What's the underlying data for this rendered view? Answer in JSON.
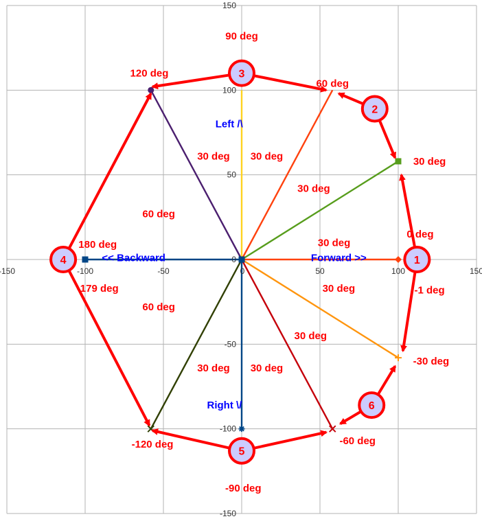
{
  "chart_data": {
    "type": "scatter",
    "title": "",
    "xlabel": "",
    "ylabel": "",
    "xlim": [
      -150,
      150
    ],
    "ylim": [
      -150,
      150
    ],
    "grid": true,
    "x_ticks": [
      {
        "value": -150,
        "label": "-150"
      },
      {
        "value": -100,
        "label": "-100"
      },
      {
        "value": -50,
        "label": "-50"
      },
      {
        "value": 0,
        "label": "0"
      },
      {
        "value": 50,
        "label": "50"
      },
      {
        "value": 100,
        "label": "100"
      },
      {
        "value": 150,
        "label": "150"
      }
    ],
    "y_ticks": [
      {
        "value": 150,
        "label": "150"
      },
      {
        "value": 100,
        "label": "100"
      },
      {
        "value": 50,
        "label": "50"
      },
      {
        "value": 0,
        "label": "0"
      },
      {
        "value": -50,
        "label": "-50"
      },
      {
        "value": -100,
        "label": "-100"
      },
      {
        "value": -150,
        "label": "-150"
      }
    ],
    "series": [
      {
        "angle": 0,
        "x": 100,
        "y": 0,
        "color": "#ff420e",
        "marker": "diamond"
      },
      {
        "angle": 30,
        "x": 100,
        "y": 58,
        "color": "#579d1c",
        "marker": "square"
      },
      {
        "angle": 60,
        "x": 58,
        "y": 100,
        "color": "#ff420e",
        "marker": "none"
      },
      {
        "angle": 90,
        "x": 0,
        "y": 100,
        "color": "#ffd320",
        "marker": "none"
      },
      {
        "angle": 120,
        "x": -58,
        "y": 100,
        "color": "#4b1f6f",
        "marker": "circle"
      },
      {
        "angle": 180,
        "x": -100,
        "y": 0,
        "color": "#004586",
        "marker": "square"
      },
      {
        "angle": -120,
        "x": -58,
        "y": -100,
        "color": "#314004",
        "marker": "x"
      },
      {
        "angle": -90,
        "x": 0,
        "y": -100,
        "color": "#004586",
        "marker": "star"
      },
      {
        "angle": -60,
        "x": 58,
        "y": -100,
        "color": "#c5000b",
        "marker": "x"
      },
      {
        "angle": -30,
        "x": 100,
        "y": -58,
        "color": "#ff950e",
        "marker": "plus"
      }
    ],
    "annotations": [
      {
        "text": "90 deg",
        "x": 0,
        "y": 132,
        "class": "ang"
      },
      {
        "text": "120 deg",
        "x": -59,
        "y": 110,
        "class": "ang"
      },
      {
        "text": "60 deg",
        "x": 58,
        "y": 104,
        "class": "ang"
      },
      {
        "text": "Left /\\",
        "x": -8,
        "y": 80,
        "class": "dir"
      },
      {
        "text": "30 deg",
        "x": -18,
        "y": 61,
        "class": "ang"
      },
      {
        "text": "30 deg",
        "x": 16,
        "y": 61,
        "class": "ang"
      },
      {
        "text": "30 deg",
        "x": 120,
        "y": 58,
        "class": "ang"
      },
      {
        "text": "30 deg",
        "x": 46,
        "y": 42,
        "class": "ang"
      },
      {
        "text": "60 deg",
        "x": -53,
        "y": 27,
        "class": "ang"
      },
      {
        "text": "0 deg",
        "x": 114,
        "y": 15,
        "class": "ang"
      },
      {
        "text": "180 deg",
        "x": -92,
        "y": 9,
        "class": "ang"
      },
      {
        "text": "30 deg",
        "x": 59,
        "y": 10,
        "class": "ang"
      },
      {
        "text": "<< Backward",
        "x": -69,
        "y": 1,
        "class": "dir"
      },
      {
        "text": "Forward >>",
        "x": 62,
        "y": 1,
        "class": "dir"
      },
      {
        "text": "-179 deg",
        "x": -92,
        "y": -17,
        "class": "ang"
      },
      {
        "text": "30 deg",
        "x": 62,
        "y": -17,
        "class": "ang"
      },
      {
        "text": "-1 deg",
        "x": 120,
        "y": -18,
        "class": "ang"
      },
      {
        "text": "60 deg",
        "x": -53,
        "y": -28,
        "class": "ang"
      },
      {
        "text": "30 deg",
        "x": 44,
        "y": -45,
        "class": "ang"
      },
      {
        "text": "-30 deg",
        "x": 121,
        "y": -60,
        "class": "ang"
      },
      {
        "text": "30 deg",
        "x": -18,
        "y": -64,
        "class": "ang"
      },
      {
        "text": "30 deg",
        "x": 16,
        "y": -64,
        "class": "ang"
      },
      {
        "text": "Right \\/",
        "x": -11,
        "y": -86,
        "class": "dir"
      },
      {
        "text": "-60 deg",
        "x": 74,
        "y": -107,
        "class": "ang"
      },
      {
        "text": "-120 deg",
        "x": -57,
        "y": -109,
        "class": "ang"
      },
      {
        "text": "-90 deg",
        "x": 1,
        "y": -135,
        "class": "ang"
      }
    ],
    "waypoints": [
      {
        "label": "1",
        "x": 112,
        "y": 0
      },
      {
        "label": "2",
        "x": 85,
        "y": 89
      },
      {
        "label": "3",
        "x": 0,
        "y": 110
      },
      {
        "label": "4",
        "x": -114,
        "y": 0
      },
      {
        "label": "5",
        "x": 0,
        "y": -113
      },
      {
        "label": "6",
        "x": 83,
        "y": -86
      }
    ],
    "arrows": [
      {
        "from": [
          112,
          0
        ],
        "to": [
          102,
          50
        ]
      },
      {
        "from": [
          85,
          89
        ],
        "to": [
          62,
          98
        ]
      },
      {
        "from": [
          0,
          110
        ],
        "to": [
          -57,
          102
        ]
      },
      {
        "from": [
          -114,
          0
        ],
        "to": [
          -58,
          98
        ]
      },
      {
        "from": [
          -114,
          0
        ],
        "to": [
          -59,
          -98
        ]
      },
      {
        "from": [
          0,
          -113
        ],
        "to": [
          -57,
          -101
        ]
      },
      {
        "from": [
          0,
          -113
        ],
        "to": [
          54,
          -102
        ]
      },
      {
        "from": [
          112,
          0
        ],
        "to": [
          103,
          -54
        ]
      },
      {
        "from": [
          85,
          89
        ],
        "to": [
          98,
          60
        ]
      },
      {
        "from": [
          83,
          -86
        ],
        "to": [
          98,
          -63
        ]
      },
      {
        "from": [
          83,
          -86
        ],
        "to": [
          63,
          -97
        ]
      },
      {
        "from": [
          0,
          110
        ],
        "to": [
          54,
          100
        ]
      }
    ],
    "colors": {
      "arrow": "#ff0000",
      "waypoint_fill": "#ccccff",
      "waypoint_stroke": "#ff0000",
      "grid": "#b3b3b3",
      "zero_axis": "#004586"
    }
  }
}
